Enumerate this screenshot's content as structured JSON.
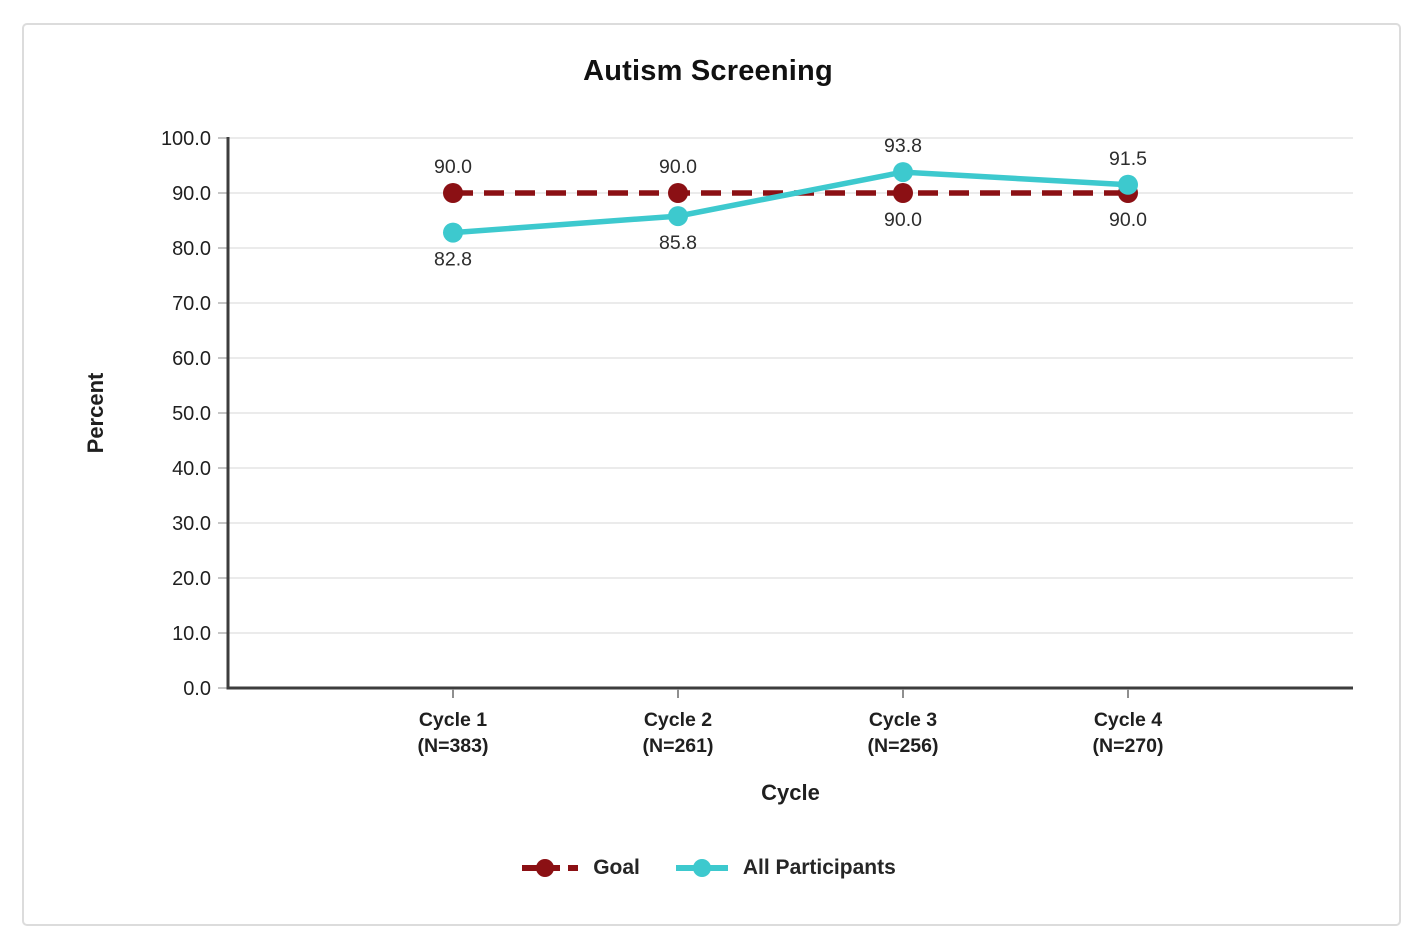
{
  "chart_data": {
    "type": "line",
    "title": "Autism Screening",
    "xlabel": "Cycle",
    "ylabel": "Percent",
    "ylim": [
      0,
      100
    ],
    "ytick_step": 10,
    "ytick_decimals": 1,
    "grid": true,
    "legend_position": "bottom",
    "categories": [
      {
        "label": "Cycle 1",
        "n": "(N=383)"
      },
      {
        "label": "Cycle 2",
        "n": "(N=261)"
      },
      {
        "label": "Cycle 3",
        "n": "(N=256)"
      },
      {
        "label": "Cycle 4",
        "n": "(N=270)"
      }
    ],
    "series": [
      {
        "name": "Goal",
        "color": "#8B1014",
        "line_style": "dashed",
        "values": [
          90.0,
          90.0,
          90.0,
          90.0
        ],
        "value_labels": [
          "90.0",
          "90.0",
          "90.0",
          "90.0"
        ],
        "value_label_positions": [
          "above",
          "above",
          "below",
          "below"
        ]
      },
      {
        "name": "All Participants",
        "color": "#3DC9CE",
        "line_style": "solid",
        "values": [
          82.8,
          85.8,
          93.8,
          91.5
        ],
        "value_labels": [
          "82.8",
          "85.8",
          "93.8",
          "91.5"
        ],
        "value_label_positions": [
          "below",
          "below",
          "above",
          "above"
        ]
      }
    ]
  },
  "style": {
    "axis_color": "#3d3d3d",
    "grid_color": "#ebebeb",
    "y_tick_color": "#c6c6c6",
    "x_tick_color": "#8f8f8f",
    "tick_label_color": "#1f1f1f",
    "value_label_color": "#2d2d2d",
    "border_color": "#dcdcdc",
    "background": "#ffffff"
  }
}
